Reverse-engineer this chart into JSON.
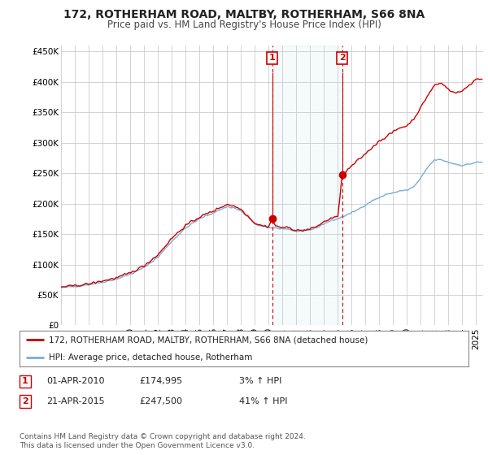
{
  "title": "172, ROTHERHAM ROAD, MALTBY, ROTHERHAM, S66 8NA",
  "subtitle": "Price paid vs. HM Land Registry's House Price Index (HPI)",
  "yticks": [
    0,
    50000,
    100000,
    150000,
    200000,
    250000,
    300000,
    350000,
    400000,
    450000
  ],
  "ytick_labels": [
    "£0",
    "£50K",
    "£100K",
    "£150K",
    "£200K",
    "£250K",
    "£300K",
    "£350K",
    "£400K",
    "£450K"
  ],
  "ylim": [
    0,
    460000
  ],
  "xlim_start": 1995.0,
  "xlim_end": 2025.5,
  "property_color": "#cc0000",
  "hpi_color": "#7aadd4",
  "transaction1": {
    "date": "01-APR-2010",
    "price": 174995,
    "label": "1",
    "year": 2010.25,
    "pct": "3% ↑ HPI"
  },
  "transaction2": {
    "date": "21-APR-2015",
    "price": 247500,
    "label": "2",
    "year": 2015.31,
    "pct": "41% ↑ HPI"
  },
  "legend_line1": "172, ROTHERHAM ROAD, MALTBY, ROTHERHAM, S66 8NA (detached house)",
  "legend_line2": "HPI: Average price, detached house, Rotherham",
  "footer": "Contains HM Land Registry data © Crown copyright and database right 2024.\nThis data is licensed under the Open Government Licence v3.0.",
  "background_color": "#ffffff",
  "plot_bg_color": "#ffffff",
  "grid_color": "#cccccc"
}
